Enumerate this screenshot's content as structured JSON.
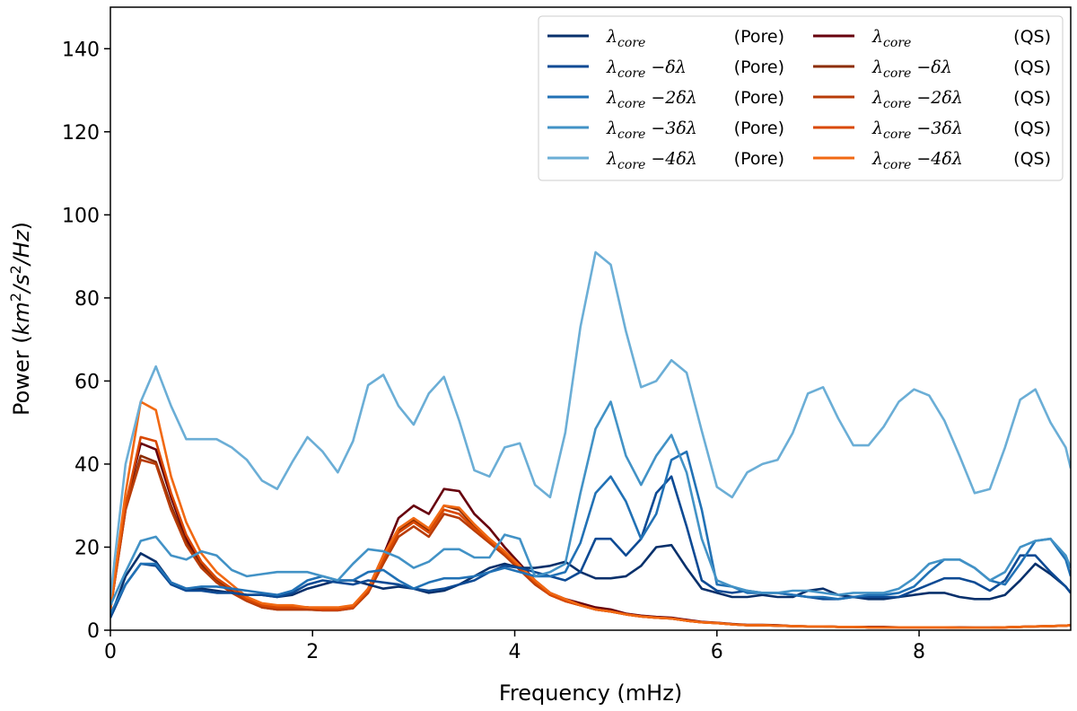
{
  "chart_data": {
    "type": "line",
    "title": "",
    "xlabel": "Frequency (mHz)",
    "ylabel": "Power (km²/s²/Hz)",
    "xlim": [
      0,
      9.5
    ],
    "ylim": [
      0,
      150
    ],
    "xticks": [
      0,
      2,
      4,
      6,
      8
    ],
    "yticks": [
      0,
      20,
      40,
      60,
      80,
      100,
      120,
      140
    ],
    "xtick_labels": [
      "0",
      "2",
      "4",
      "6",
      "8"
    ],
    "ytick_labels": [
      "0",
      "20",
      "40",
      "60",
      "80",
      "100",
      "120",
      "140"
    ],
    "ylabel_parts": {
      "prefix": "Power (",
      "km": "km",
      "exp1": "2",
      "slash1": "/",
      "s": "s",
      "exp2": "2",
      "slash2": "/",
      "hz": "Hz",
      "suffix": ")"
    },
    "legend_position": "top-right",
    "x": [
      0.0,
      0.15,
      0.3,
      0.45,
      0.6,
      0.75,
      0.9,
      1.05,
      1.2,
      1.35,
      1.5,
      1.65,
      1.8,
      1.95,
      2.1,
      2.25,
      2.4,
      2.55,
      2.7,
      2.85,
      3.0,
      3.15,
      3.3,
      3.45,
      3.6,
      3.75,
      3.9,
      4.05,
      4.2,
      4.35,
      4.5,
      4.65,
      4.8,
      4.95,
      5.1,
      5.25,
      5.4,
      5.55,
      5.7,
      5.85,
      6.0,
      6.15,
      6.3,
      6.45,
      6.6,
      6.75,
      6.9,
      7.05,
      7.2,
      7.35,
      7.5,
      7.65,
      7.8,
      7.95,
      8.1,
      8.25,
      8.4,
      8.55,
      8.7,
      8.85,
      9.0,
      9.15,
      9.3,
      9.45,
      9.5
    ],
    "series": [
      {
        "name": "Pore core",
        "legend_suffix": "",
        "legend_tag": "(Pore)",
        "color": "#08306b",
        "values": [
          3,
          13,
          18.5,
          16.5,
          11.5,
          10,
          10,
          9.5,
          9,
          8.5,
          8.5,
          8,
          8.5,
          10,
          11,
          12,
          12,
          11,
          10,
          10.5,
          10,
          9,
          9.5,
          11,
          13,
          15,
          16,
          15,
          15,
          15.5,
          16.5,
          14,
          12.5,
          12.5,
          13,
          15.5,
          20,
          20.5,
          15,
          10,
          9,
          8,
          8,
          8.5,
          8,
          8,
          9.5,
          10,
          8.5,
          8,
          7.5,
          7.5,
          8,
          8.5,
          9,
          9,
          8,
          7.5,
          7.5,
          8.5,
          12,
          16,
          13.5,
          10.5,
          9
        ]
      },
      {
        "name": "Pore -1",
        "legend_suffix": "−δλ",
        "legend_tag": "(Pore)",
        "color": "#0d4a94",
        "values": [
          3,
          11,
          16,
          15.5,
          11,
          9.5,
          9.5,
          9,
          9,
          8.5,
          8.5,
          8,
          9,
          11,
          12,
          11.5,
          11,
          12,
          11.5,
          11,
          10,
          9.5,
          10,
          11,
          12,
          14,
          15.5,
          15,
          14,
          13,
          12,
          14,
          22,
          22,
          18,
          22,
          33,
          37,
          25,
          12,
          9.5,
          9,
          9.5,
          9,
          9,
          8.5,
          8,
          7.5,
          7.5,
          8,
          8,
          8,
          8,
          9.5,
          11,
          12.5,
          12.5,
          11.5,
          9.5,
          12,
          18,
          18,
          14,
          10.5,
          9
        ]
      },
      {
        "name": "Pore -2",
        "legend_suffix": "−2δλ",
        "legend_tag": "(Pore)",
        "color": "#2171b5",
        "values": [
          4,
          11,
          16,
          16,
          11.5,
          10,
          10.5,
          10.5,
          10,
          9.5,
          9,
          8.5,
          9.5,
          12,
          13,
          12,
          12,
          14,
          14.5,
          12,
          10,
          11.5,
          12.5,
          12.5,
          13,
          14,
          15,
          14,
          13,
          13,
          14,
          21,
          33,
          37,
          31,
          22,
          28,
          41,
          43,
          29,
          11,
          10.5,
          9,
          9,
          9,
          8.5,
          8,
          8,
          7.5,
          8,
          8.5,
          8.5,
          9,
          10.5,
          14,
          17,
          17,
          15,
          12,
          11,
          16,
          21.5,
          22,
          17,
          13
        ]
      },
      {
        "name": "Pore -3",
        "legend_suffix": "−3δλ",
        "legend_tag": "(Pore)",
        "color": "#4292c6",
        "values": [
          6,
          14,
          21.5,
          22.5,
          18,
          17,
          19,
          18,
          14.5,
          13,
          13.5,
          14,
          14,
          14,
          13,
          12,
          16,
          19.5,
          19,
          17.5,
          15,
          16.5,
          19.5,
          19.5,
          17.5,
          17.5,
          23,
          22,
          13,
          14,
          16,
          33,
          48.5,
          55,
          42,
          35,
          42,
          47,
          38,
          22,
          12,
          10.5,
          9.5,
          9,
          9,
          9.5,
          9.5,
          9,
          8.5,
          9,
          9,
          9,
          10,
          12.5,
          16,
          17,
          17,
          15,
          12,
          14,
          20,
          21.5,
          22,
          18,
          15
        ]
      },
      {
        "name": "Pore -4",
        "legend_suffix": "−4δλ",
        "legend_tag": "(Pore)",
        "color": "#6baed6",
        "values": [
          8,
          40,
          55,
          63.5,
          54,
          46,
          46,
          46,
          44,
          41,
          36,
          34,
          40.5,
          46.5,
          43,
          38,
          45.5,
          59,
          61.5,
          54,
          49.5,
          57,
          61,
          50.5,
          38.5,
          37,
          44,
          45,
          35,
          32,
          47.5,
          73,
          91,
          88,
          72,
          58.5,
          60,
          65,
          62,
          48,
          34.5,
          32,
          38,
          40,
          41,
          47.5,
          57,
          58.5,
          51,
          44.5,
          44.5,
          49,
          55,
          58,
          56.5,
          50.5,
          42,
          33,
          34,
          44,
          55.5,
          58,
          50,
          44,
          39
        ]
      }
    ],
    "series_qs": [
      {
        "name": "QS core",
        "legend_suffix": "",
        "legend_tag": "(QS)",
        "color": "#67000d",
        "values": [
          5,
          30,
          45,
          43.5,
          32,
          22,
          16,
          12.5,
          10,
          8,
          6,
          5.5,
          5.5,
          5.5,
          5,
          5,
          5.5,
          10,
          18,
          27,
          30,
          28,
          34,
          33.5,
          28,
          24.5,
          20,
          16,
          12,
          9,
          7.5,
          6.5,
          5.5,
          5,
          4,
          3.5,
          3.2,
          3,
          2.5,
          2,
          1.8,
          1.5,
          1.3,
          1.3,
          1.2,
          1,
          0.9,
          0.9,
          0.8,
          0.8,
          0.8,
          0.8,
          0.7,
          0.7,
          0.7,
          0.7,
          0.7,
          0.6,
          0.6,
          0.7,
          0.8,
          0.9,
          1,
          1.1,
          1.2
        ]
      },
      {
        "name": "QS -1",
        "legend_suffix": "−δλ",
        "legend_tag": "(QS)",
        "color": "#8c2d04",
        "values": [
          5,
          29,
          42,
          40.5,
          30,
          21,
          15.5,
          12,
          9.5,
          7.5,
          5.5,
          5,
          5,
          5,
          4.8,
          4.8,
          5.3,
          9.5,
          17,
          24,
          26.5,
          24,
          30,
          29,
          25,
          22,
          19,
          15,
          11.5,
          8.5,
          7,
          6,
          5,
          4.5,
          3.8,
          3.3,
          3,
          2.8,
          2.3,
          1.9,
          1.7,
          1.4,
          1.2,
          1.2,
          1.1,
          1,
          0.9,
          0.9,
          0.8,
          0.8,
          0.7,
          0.7,
          0.7,
          0.7,
          0.7,
          0.7,
          0.6,
          0.6,
          0.6,
          0.7,
          0.8,
          0.9,
          1,
          1.1,
          1.2
        ]
      },
      {
        "name": "QS -2",
        "legend_suffix": "−2δλ",
        "legend_tag": "(QS)",
        "color": "#b83c08",
        "values": [
          5,
          29,
          41,
          40,
          29,
          20.5,
          15,
          11.5,
          9,
          7,
          5.5,
          5,
          5,
          5,
          4.8,
          4.8,
          5.3,
          9,
          16,
          22.5,
          25,
          22.5,
          28,
          27,
          24,
          21,
          18,
          14.5,
          11,
          8.5,
          7,
          6,
          5,
          4.5,
          3.8,
          3.3,
          3,
          2.8,
          2.3,
          1.9,
          1.7,
          1.4,
          1.2,
          1.2,
          1.1,
          1,
          0.9,
          0.9,
          0.8,
          0.8,
          0.7,
          0.7,
          0.7,
          0.7,
          0.7,
          0.7,
          0.6,
          0.6,
          0.6,
          0.7,
          0.8,
          0.9,
          1,
          1.1,
          1.2
        ]
      },
      {
        "name": "QS -3",
        "legend_suffix": "−3δλ",
        "legend_tag": "(QS)",
        "color": "#d94801",
        "values": [
          5,
          30,
          46.5,
          45.5,
          33,
          23,
          16.5,
          12.5,
          10,
          7.5,
          6,
          5.5,
          5.5,
          5.5,
          5,
          5,
          5.5,
          9.5,
          17,
          23.5,
          26,
          23.5,
          29,
          28,
          24.5,
          21.5,
          18.5,
          15,
          11.5,
          8.5,
          7,
          6,
          5,
          4.5,
          3.8,
          3.3,
          3,
          2.8,
          2.3,
          1.9,
          1.7,
          1.4,
          1.2,
          1.2,
          1.1,
          1,
          0.9,
          0.9,
          0.8,
          0.8,
          0.7,
          0.7,
          0.7,
          0.7,
          0.7,
          0.7,
          0.6,
          0.6,
          0.6,
          0.7,
          0.8,
          0.9,
          1,
          1.1,
          1.2
        ]
      },
      {
        "name": "QS -4",
        "legend_suffix": "−4δλ",
        "legend_tag": "(QS)",
        "color": "#f16913",
        "values": [
          5,
          33,
          55,
          53,
          37,
          26,
          18.5,
          14,
          11,
          8,
          6.5,
          6,
          6,
          5.5,
          5.5,
          5.5,
          6,
          10,
          18,
          24.5,
          27,
          24.5,
          30,
          29.5,
          25.5,
          22,
          19,
          15.5,
          12,
          9,
          7.5,
          6,
          5,
          4.5,
          3.8,
          3.3,
          3,
          2.8,
          2.3,
          1.9,
          1.7,
          1.4,
          1.2,
          1.2,
          1.1,
          1,
          0.9,
          0.9,
          0.8,
          0.8,
          0.7,
          0.7,
          0.7,
          0.7,
          0.7,
          0.7,
          0.6,
          0.6,
          0.6,
          0.7,
          0.8,
          0.9,
          1,
          1.1,
          1.2
        ]
      }
    ],
    "legend_lambda": "λ",
    "legend_core": "core"
  }
}
